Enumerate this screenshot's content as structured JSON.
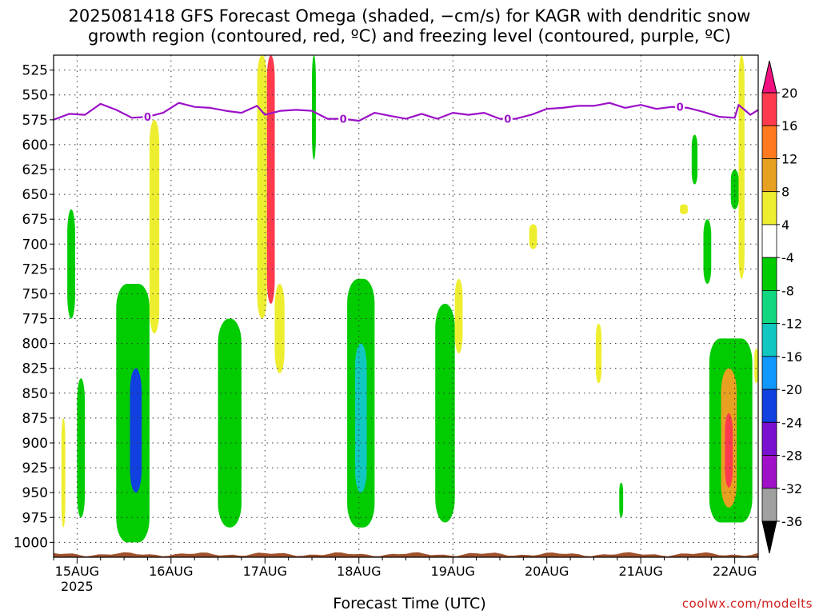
{
  "title_line1": "2025081418 GFS Forecast Omega (shaded, −cm/s) for KAGR with dendritic snow",
  "title_line2": "growth region (contoured, red, ºC) and freezing level (contoured, purple, ºC)",
  "credit": "coolwx.com/modelts",
  "chart_data": {
    "type": "heatmap",
    "xlabel": "Forecast Time (UTC)",
    "ylabel": "",
    "x_ticks": [
      "15AUG",
      "16AUG",
      "17AUG",
      "18AUG",
      "19AUG",
      "20AUG",
      "21AUG",
      "22AUG"
    ],
    "x_tick_sublabel": "2025",
    "x_range": [
      "2025-08-14T18:00Z",
      "2025-08-22T06:00Z"
    ],
    "y_ticks": [
      525,
      550,
      575,
      600,
      625,
      650,
      675,
      700,
      725,
      750,
      775,
      800,
      825,
      850,
      875,
      900,
      925,
      950,
      975,
      1000
    ],
    "y_range": [
      510,
      1015
    ],
    "y_inverted": true,
    "grid": true,
    "colorbar": {
      "labels": [
        20,
        16,
        12,
        8,
        4,
        -4,
        -8,
        -12,
        -16,
        -20,
        -24,
        -28,
        -32,
        -36
      ],
      "colors": [
        "#ff3a4e",
        "#ff7a1e",
        "#e8a020",
        "#eeee30",
        "#ffffff",
        "#00cc00",
        "#10d880",
        "#10c8c0",
        "#1098ff",
        "#1040e0",
        "#7a10d0",
        "#a010c8",
        "#a0a0a0"
      ],
      "top_arrow_color": "#f01080",
      "bottom_arrow_color": "#000000"
    },
    "contours": {
      "freezing_level": {
        "label": "0",
        "color": "#9b10c8",
        "points": [
          [
            "2025-08-14T18:00Z",
            575
          ],
          [
            "2025-08-14T22:00Z",
            569
          ],
          [
            "2025-08-15T02:00Z",
            570
          ],
          [
            "2025-08-15T06:00Z",
            559
          ],
          [
            "2025-08-15T10:00Z",
            565
          ],
          [
            "2025-08-15T14:00Z",
            573
          ],
          [
            "2025-08-15T18:00Z",
            572
          ],
          [
            "2025-08-15T22:00Z",
            568
          ],
          [
            "2025-08-16T02:00Z",
            558
          ],
          [
            "2025-08-16T06:00Z",
            562
          ],
          [
            "2025-08-16T10:00Z",
            563
          ],
          [
            "2025-08-16T14:00Z",
            566
          ],
          [
            "2025-08-16T18:00Z",
            568
          ],
          [
            "2025-08-16T22:00Z",
            561
          ],
          [
            "2025-08-17T00:00Z",
            570
          ],
          [
            "2025-08-17T04:00Z",
            566
          ],
          [
            "2025-08-17T08:00Z",
            565
          ],
          [
            "2025-08-17T12:00Z",
            566
          ],
          [
            "2025-08-17T16:00Z",
            574
          ],
          [
            "2025-08-17T20:00Z",
            574
          ],
          [
            "2025-08-18T00:00Z",
            576
          ],
          [
            "2025-08-18T04:00Z",
            568
          ],
          [
            "2025-08-18T08:00Z",
            571
          ],
          [
            "2025-08-18T12:00Z",
            574
          ],
          [
            "2025-08-18T16:00Z",
            569
          ],
          [
            "2025-08-18T20:00Z",
            574
          ],
          [
            "2025-08-19T00:00Z",
            568
          ],
          [
            "2025-08-19T04:00Z",
            570
          ],
          [
            "2025-08-19T08:00Z",
            568
          ],
          [
            "2025-08-19T12:00Z",
            574
          ],
          [
            "2025-08-19T16:00Z",
            574
          ],
          [
            "2025-08-19T20:00Z",
            570
          ],
          [
            "2025-08-20T00:00Z",
            564
          ],
          [
            "2025-08-20T04:00Z",
            563
          ],
          [
            "2025-08-20T08:00Z",
            561
          ],
          [
            "2025-08-20T12:00Z",
            561
          ],
          [
            "2025-08-20T16:00Z",
            558
          ],
          [
            "2025-08-20T20:00Z",
            563
          ],
          [
            "2025-08-21T00:00Z",
            560
          ],
          [
            "2025-08-21T04:00Z",
            564
          ],
          [
            "2025-08-21T08:00Z",
            562
          ],
          [
            "2025-08-21T12:00Z",
            563
          ],
          [
            "2025-08-21T16:00Z",
            567
          ],
          [
            "2025-08-21T20:00Z",
            572
          ],
          [
            "2025-08-22T00:00Z",
            573
          ],
          [
            "2025-08-22T01:00Z",
            560
          ],
          [
            "2025-08-22T04:00Z",
            570
          ],
          [
            "2025-08-22T06:00Z",
            565
          ]
        ]
      }
    },
    "shaded_regions_omega": [
      {
        "t0": "2025-08-14T20:00Z",
        "t1": "2025-08-14T21:00Z",
        "p0": 875,
        "p1": 985,
        "value": 6
      },
      {
        "t0": "2025-08-14T21:30Z",
        "t1": "2025-08-14T23:30Z",
        "p0": 665,
        "p1": 775,
        "value": -6
      },
      {
        "t0": "2025-08-15T00:00Z",
        "t1": "2025-08-15T02:00Z",
        "p0": 835,
        "p1": 975,
        "value": -6
      },
      {
        "t0": "2025-08-15T10:00Z",
        "t1": "2025-08-15T18:30Z",
        "p0": 740,
        "p1": 1000,
        "value": -6
      },
      {
        "t0": "2025-08-15T13:30Z",
        "t1": "2025-08-15T16:30Z",
        "p0": 825,
        "p1": 950,
        "value": -20
      },
      {
        "t0": "2025-08-15T18:30Z",
        "t1": "2025-08-15T21:00Z",
        "p0": 575,
        "p1": 790,
        "value": 6
      },
      {
        "t0": "2025-08-16T12:00Z",
        "t1": "2025-08-16T18:00Z",
        "p0": 775,
        "p1": 985,
        "value": -6
      },
      {
        "t0": "2025-08-16T22:00Z",
        "t1": "2025-08-17T00:30Z",
        "p0": 510,
        "p1": 775,
        "value": 6
      },
      {
        "t0": "2025-08-17T00:30Z",
        "t1": "2025-08-17T02:30Z",
        "p0": 510,
        "p1": 760,
        "value": 18
      },
      {
        "t0": "2025-08-17T02:30Z",
        "t1": "2025-08-17T05:00Z",
        "p0": 740,
        "p1": 830,
        "value": 6
      },
      {
        "t0": "2025-08-17T12:00Z",
        "t1": "2025-08-17T13:00Z",
        "p0": 510,
        "p1": 615,
        "value": -6
      },
      {
        "t0": "2025-08-17T21:00Z",
        "t1": "2025-08-18T04:00Z",
        "p0": 735,
        "p1": 985,
        "value": -6
      },
      {
        "t0": "2025-08-17T23:00Z",
        "t1": "2025-08-18T02:00Z",
        "p0": 800,
        "p1": 950,
        "value": -12
      },
      {
        "t0": "2025-08-18T19:30Z",
        "t1": "2025-08-19T00:30Z",
        "p0": 760,
        "p1": 980,
        "value": -6
      },
      {
        "t0": "2025-08-19T00:30Z",
        "t1": "2025-08-19T02:30Z",
        "p0": 735,
        "p1": 810,
        "value": 6
      },
      {
        "t0": "2025-08-19T19:30Z",
        "t1": "2025-08-19T21:30Z",
        "p0": 680,
        "p1": 705,
        "value": 6
      },
      {
        "t0": "2025-08-20T12:30Z",
        "t1": "2025-08-20T14:00Z",
        "p0": 780,
        "p1": 840,
        "value": 6
      },
      {
        "t0": "2025-08-20T18:30Z",
        "t1": "2025-08-20T19:30Z",
        "p0": 940,
        "p1": 975,
        "value": -6
      },
      {
        "t0": "2025-08-21T13:00Z",
        "t1": "2025-08-21T14:30Z",
        "p0": 590,
        "p1": 640,
        "value": -6
      },
      {
        "t0": "2025-08-21T10:00Z",
        "t1": "2025-08-21T12:00Z",
        "p0": 660,
        "p1": 670,
        "value": 6
      },
      {
        "t0": "2025-08-21T16:00Z",
        "t1": "2025-08-21T18:00Z",
        "p0": 675,
        "p1": 740,
        "value": -6
      },
      {
        "t0": "2025-08-21T17:30Z",
        "t1": "2025-08-22T04:30Z",
        "p0": 795,
        "p1": 980,
        "value": -6
      },
      {
        "t0": "2025-08-21T20:30Z",
        "t1": "2025-08-22T00:30Z",
        "p0": 825,
        "p1": 965,
        "value": 10
      },
      {
        "t0": "2025-08-21T21:30Z",
        "t1": "2025-08-21T23:30Z",
        "p0": 870,
        "p1": 945,
        "value": 18
      },
      {
        "t0": "2025-08-21T23:00Z",
        "t1": "2025-08-22T01:00Z",
        "p0": 625,
        "p1": 665,
        "value": -6
      },
      {
        "t0": "2025-08-22T01:00Z",
        "t1": "2025-08-22T02:30Z",
        "p0": 510,
        "p1": 735,
        "value": 6
      },
      {
        "t0": "2025-08-22T05:00Z",
        "t1": "2025-08-22T06:00Z",
        "p0": 805,
        "p1": 840,
        "value": 6
      }
    ],
    "terrain_level": 1012
  }
}
